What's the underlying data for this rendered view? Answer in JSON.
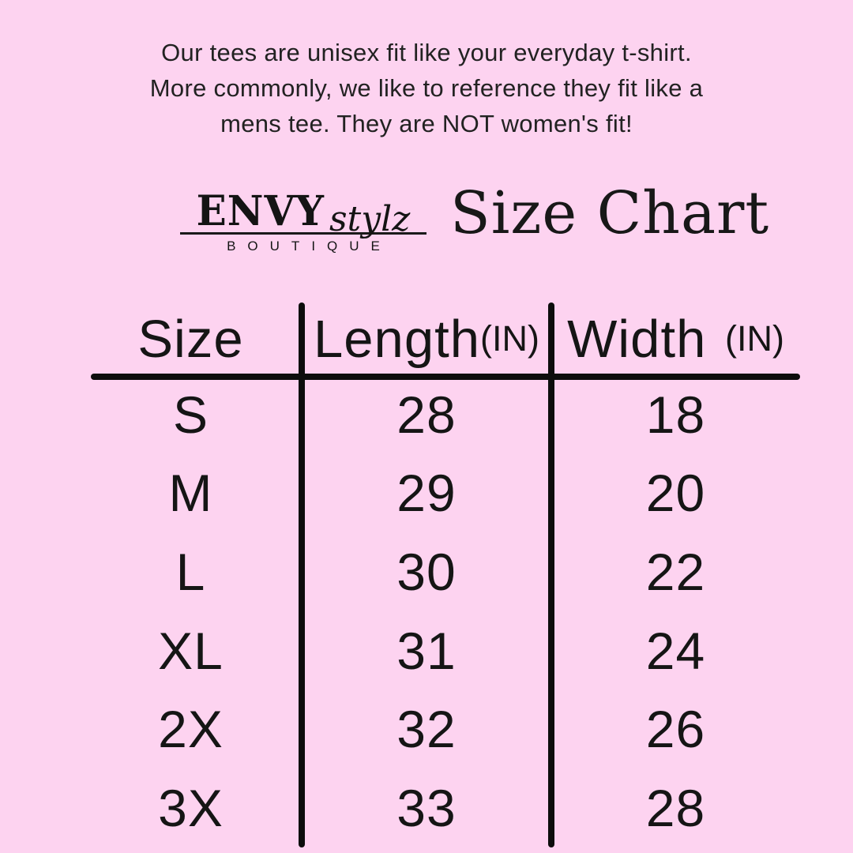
{
  "background_color": "#fdd3f0",
  "text_color": "#1b1b1b",
  "line_color": "#0d0d0d",
  "intro": {
    "lines": [
      "Our tees are unisex fit like your everyday t-shirt.",
      "More commonly, we like to reference they fit like a",
      "mens tee. They are NOT women's fit!"
    ]
  },
  "logo": {
    "name_bold": "ENVY",
    "name_script": "stylz",
    "subtitle": "BOUTIQUE"
  },
  "title": "Size Chart",
  "table": {
    "header": {
      "size": "Size",
      "length": "Length",
      "length_unit": "(IN)",
      "width": "Width",
      "width_unit": "(IN)"
    }
  },
  "chart_data": {
    "type": "table",
    "title": "Size Chart",
    "columns": [
      "Size",
      "Length (IN)",
      "Width (IN)"
    ],
    "rows": [
      [
        "S",
        "28",
        "18"
      ],
      [
        "M",
        "29",
        "20"
      ],
      [
        "L",
        "30",
        "22"
      ],
      [
        "XL",
        "31",
        "24"
      ],
      [
        "2X",
        "32",
        "26"
      ],
      [
        "3X",
        "33",
        "28"
      ]
    ]
  }
}
